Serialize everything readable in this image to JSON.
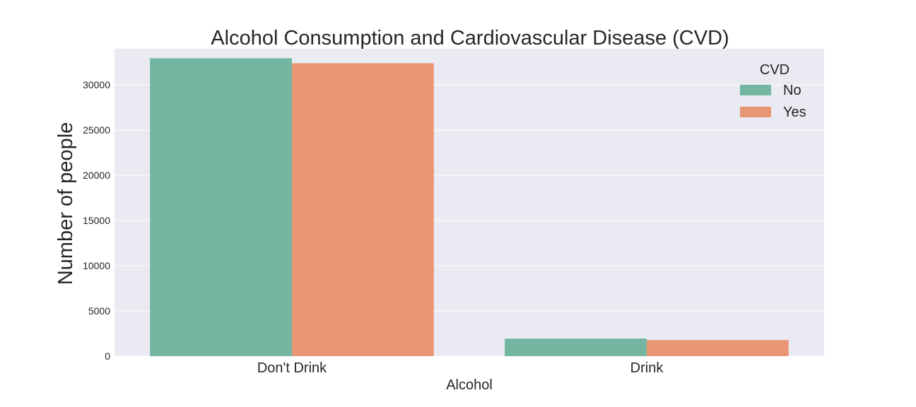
{
  "chart_data": {
    "type": "bar",
    "title": "Alcohol Consumption and Cardiovascular Disease (CVD)",
    "xlabel": "Alcohol",
    "ylabel": "Number of people",
    "categories": [
      "Don't Drink",
      "Drink"
    ],
    "series": [
      {
        "name": "No",
        "values": [
          32950,
          1940
        ],
        "color": "#72b6a1"
      },
      {
        "name": "Yes",
        "values": [
          32400,
          1780
        ],
        "color": "#e99675"
      }
    ],
    "yticks": [
      0,
      5000,
      10000,
      15000,
      20000,
      25000,
      30000
    ],
    "ylim": [
      0,
      34000
    ],
    "grid": true,
    "legend": {
      "title": "CVD",
      "position": "top-right"
    },
    "colors": {
      "background": "#eaeaf2",
      "grid": "#ffffff"
    }
  }
}
